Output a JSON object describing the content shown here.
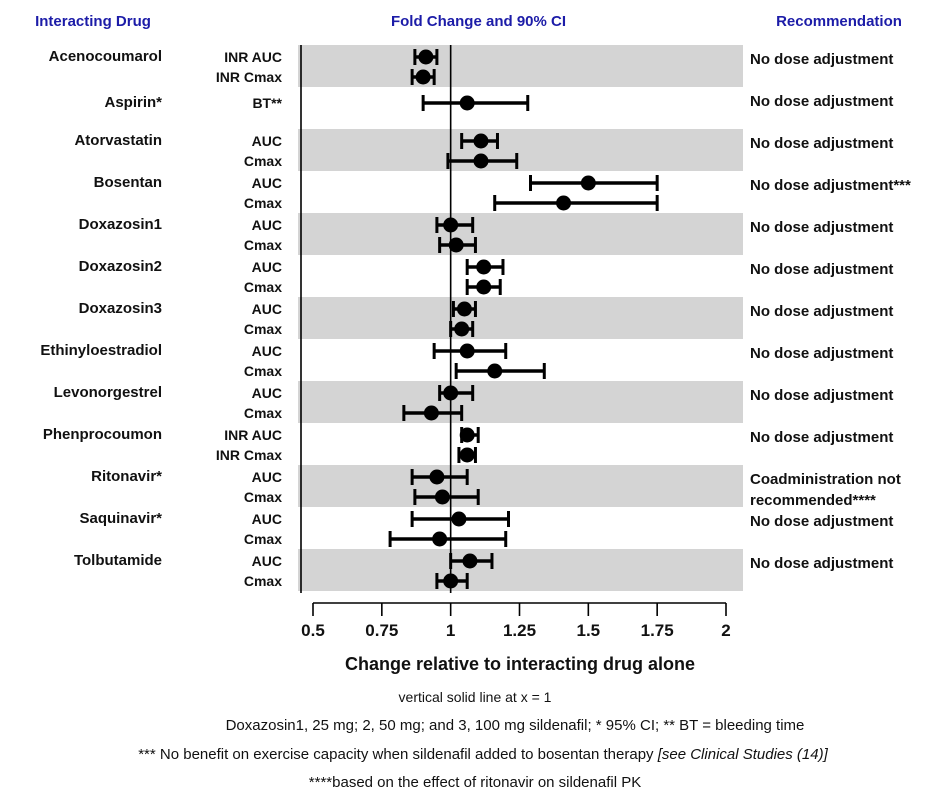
{
  "headers": {
    "left": "Interacting Drug",
    "center": "Fold Change and 90% CI",
    "right": "Recommendation"
  },
  "colors": {
    "header_blue": "#1c1ca8",
    "band_gray": "#d4d4d4",
    "marker_black": "#000000"
  },
  "chart_data": {
    "type": "forest",
    "title": "Fold Change and 90% CI",
    "xlabel": "Change relative to interacting drug alone",
    "xlim": [
      0.5,
      2
    ],
    "x_ticks": [
      0.5,
      0.75,
      1,
      1.25,
      1.5,
      1.75,
      2
    ],
    "x_tick_labels": [
      "0.5",
      "0.75",
      "1",
      "1.25",
      "1.5",
      "1.75",
      "2"
    ],
    "reference_line_x": 1,
    "grid": false,
    "groups": [
      {
        "drug": "Acenocoumarol",
        "shaded": true,
        "recommendation": "No dose adjustment",
        "measures": [
          {
            "label": "INR AUC",
            "value": 0.91,
            "ci_low": 0.87,
            "ci_high": 0.95
          },
          {
            "label": "INR Cmax",
            "value": 0.9,
            "ci_low": 0.86,
            "ci_high": 0.94
          }
        ]
      },
      {
        "drug": "Aspirin*",
        "shaded": false,
        "recommendation": "No dose adjustment",
        "measures": [
          {
            "label": "BT**",
            "value": 1.06,
            "ci_low": 0.9,
            "ci_high": 1.28
          }
        ]
      },
      {
        "drug": "Atorvastatin",
        "shaded": true,
        "recommendation": "No dose adjustment",
        "measures": [
          {
            "label": "AUC",
            "value": 1.11,
            "ci_low": 1.04,
            "ci_high": 1.17
          },
          {
            "label": "Cmax",
            "value": 1.11,
            "ci_low": 0.99,
            "ci_high": 1.24
          }
        ]
      },
      {
        "drug": "Bosentan",
        "shaded": false,
        "recommendation": "No dose adjustment***",
        "measures": [
          {
            "label": "AUC",
            "value": 1.5,
            "ci_low": 1.29,
            "ci_high": 1.75
          },
          {
            "label": "Cmax",
            "value": 1.41,
            "ci_low": 1.16,
            "ci_high": 1.75
          }
        ]
      },
      {
        "drug": "Doxazosin1",
        "shaded": true,
        "recommendation": "No dose adjustment",
        "measures": [
          {
            "label": "AUC",
            "value": 1.0,
            "ci_low": 0.95,
            "ci_high": 1.08
          },
          {
            "label": "Cmax",
            "value": 1.02,
            "ci_low": 0.96,
            "ci_high": 1.09
          }
        ]
      },
      {
        "drug": "Doxazosin2",
        "shaded": false,
        "recommendation": "No dose adjustment",
        "measures": [
          {
            "label": "AUC",
            "value": 1.12,
            "ci_low": 1.06,
            "ci_high": 1.19
          },
          {
            "label": "Cmax",
            "value": 1.12,
            "ci_low": 1.06,
            "ci_high": 1.18
          }
        ]
      },
      {
        "drug": "Doxazosin3",
        "shaded": true,
        "recommendation": "No dose adjustment",
        "measures": [
          {
            "label": "AUC",
            "value": 1.05,
            "ci_low": 1.01,
            "ci_high": 1.09
          },
          {
            "label": "Cmax",
            "value": 1.04,
            "ci_low": 1.0,
            "ci_high": 1.08
          }
        ]
      },
      {
        "drug": "Ethinyloestradiol",
        "shaded": false,
        "recommendation": "No dose adjustment",
        "measures": [
          {
            "label": "AUC",
            "value": 1.06,
            "ci_low": 0.94,
            "ci_high": 1.2
          },
          {
            "label": "Cmax",
            "value": 1.16,
            "ci_low": 1.02,
            "ci_high": 1.34
          }
        ]
      },
      {
        "drug": "Levonorgestrel",
        "shaded": true,
        "recommendation": "No dose adjustment",
        "measures": [
          {
            "label": "AUC",
            "value": 1.0,
            "ci_low": 0.96,
            "ci_high": 1.08
          },
          {
            "label": "Cmax",
            "value": 0.93,
            "ci_low": 0.83,
            "ci_high": 1.04
          }
        ]
      },
      {
        "drug": "Phenprocoumon",
        "shaded": false,
        "recommendation": "No dose adjustment",
        "measures": [
          {
            "label": "INR AUC",
            "value": 1.06,
            "ci_low": 1.04,
            "ci_high": 1.1
          },
          {
            "label": "INR Cmax",
            "value": 1.06,
            "ci_low": 1.03,
            "ci_high": 1.09
          }
        ]
      },
      {
        "drug": "Ritonavir*",
        "shaded": true,
        "recommendation": "Coadministration not recommended****",
        "measures": [
          {
            "label": "AUC",
            "value": 0.95,
            "ci_low": 0.86,
            "ci_high": 1.06
          },
          {
            "label": "Cmax",
            "value": 0.97,
            "ci_low": 0.87,
            "ci_high": 1.1
          }
        ]
      },
      {
        "drug": "Saquinavir*",
        "shaded": false,
        "recommendation": "No dose adjustment",
        "measures": [
          {
            "label": "AUC",
            "value": 1.03,
            "ci_low": 0.86,
            "ci_high": 1.21
          },
          {
            "label": "Cmax",
            "value": 0.96,
            "ci_low": 0.78,
            "ci_high": 1.2
          }
        ]
      },
      {
        "drug": "Tolbutamide",
        "shaded": true,
        "recommendation": "No dose adjustment",
        "measures": [
          {
            "label": "AUC",
            "value": 1.07,
            "ci_low": 1.0,
            "ci_high": 1.15
          },
          {
            "label": "Cmax",
            "value": 1.0,
            "ci_low": 0.95,
            "ci_high": 1.06
          }
        ]
      }
    ]
  },
  "footnotes": [
    {
      "text": "vertical solid line at x = 1",
      "italic": ""
    },
    {
      "text": "Doxazosin1, 25 mg; 2, 50 mg; and 3, 100 mg sildenafil; * 95% CI; ** BT = bleeding time",
      "italic": ""
    },
    {
      "text": "*** No benefit on exercise capacity when sildenafil added to bosentan therapy  ",
      "italic": "[see Clinical Studies (14)]"
    },
    {
      "text": "****based on the effect of ritonavir on sildenafil PK",
      "italic": ""
    }
  ]
}
